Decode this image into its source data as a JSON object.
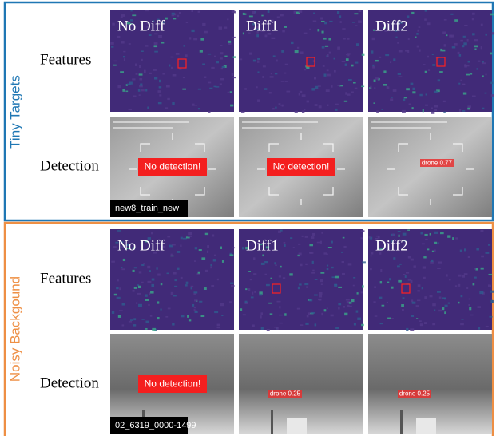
{
  "sections": [
    {
      "title": "Tiny Targets",
      "row_labels": [
        "Features",
        "Detection"
      ],
      "columns": [
        "No Diff",
        "Diff1",
        "Diff2"
      ],
      "detections": [
        "No detection!",
        "No detection!",
        "drone 0.77"
      ],
      "sequence": "new8_train_new"
    },
    {
      "title": "Noisy Backgound",
      "row_labels": [
        "Features",
        "Detection"
      ],
      "columns": [
        "No Diff",
        "Diff1",
        "Diff2"
      ],
      "detections": [
        "No detection!",
        "drone 0.25",
        "drone 0.25"
      ],
      "sequence": "02_6319_0000-1499"
    }
  ]
}
